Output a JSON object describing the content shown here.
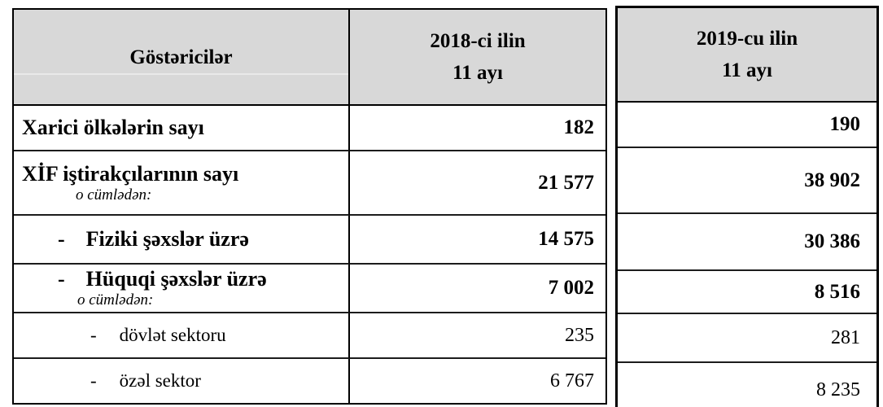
{
  "colors": {
    "header_bg": "#d8d8d8",
    "outer_border": "#000000",
    "row_line": "#1c1c1c",
    "text": "#000000"
  },
  "header": {
    "indicator_label": "Göstəricilər",
    "col_2018": {
      "line1": "2018-ci ilin",
      "line2": "11 ayı"
    },
    "col_2019": {
      "line1": "2019-cu ilin",
      "line2": "11 ayı"
    }
  },
  "rows": [
    {
      "label": "Xarici ölkələrin sayı",
      "value_2018": "182",
      "value_2019": "190"
    },
    {
      "label": "XİF iştirakçılarının sayı",
      "sublabel": "o cümlədən:",
      "value_2018": "21 577",
      "value_2019": "38 902"
    },
    {
      "dash": "-",
      "label": "Fiziki şəxslər üzrə",
      "value_2018": "14 575",
      "value_2019": "30 386"
    },
    {
      "dash": "-",
      "label": "Hüquqi şəxslər üzrə",
      "sublabel": "o cümlədən:",
      "value_2018": "7 002",
      "value_2019": "8 516"
    },
    {
      "dash": "-",
      "label": "dövlət sektoru",
      "value_2018": "235",
      "value_2019": "281"
    },
    {
      "dash": "-",
      "label": "özəl sektor",
      "value_2018": "6 767",
      "value_2019": "8 235"
    }
  ]
}
